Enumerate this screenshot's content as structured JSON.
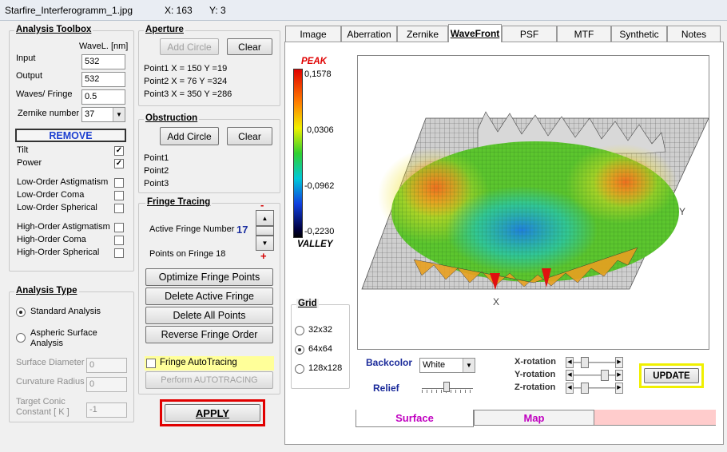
{
  "titlebar": {
    "filename": "Starfire_Interferogramm_1.jpg",
    "x": "X: 163",
    "y": "Y: 3"
  },
  "toolbox": {
    "title": "Analysis Toolbox",
    "wavel_header": "WaveL. [nm]",
    "input_label": "Input",
    "input_value": "532",
    "output_label": "Output",
    "output_value": "532",
    "waves_label": "Waves/ Fringe",
    "waves_value": "0.5",
    "zernike_label": "Zernike number",
    "zernike_value": "37",
    "remove_label": "REMOVE",
    "terms": [
      {
        "label": "Tilt",
        "checked": true
      },
      {
        "label": "Power",
        "checked": true
      },
      {
        "label": "Low-Order  Astigmatism",
        "checked": false
      },
      {
        "label": "Low-Order  Coma",
        "checked": false
      },
      {
        "label": "Low-Order  Spherical",
        "checked": false
      },
      {
        "label": "High-Order  Astigmatism",
        "checked": false
      },
      {
        "label": "High-Order  Coma",
        "checked": false
      },
      {
        "label": "High-Order  Spherical",
        "checked": false
      }
    ]
  },
  "analysis_type": {
    "title": "Analysis Type",
    "standard": "Standard Analysis",
    "aspheric_1": "Aspheric  Surface",
    "aspheric_2": "Analysis",
    "surface_diameter_label": "Surface Diameter",
    "surface_diameter_value": "0",
    "curvature_radius_label": "Curvature Radius",
    "curvature_radius_value": "0",
    "target_conic_1": "Target Conic",
    "target_conic_2": "Constant [ K ]",
    "target_conic_value": "-1"
  },
  "aperture": {
    "title": "Aperture",
    "add_label": "Add Circle",
    "clear_label": "Clear",
    "points": [
      "Point1 X =   150  Y =19",
      "Point2 X =   76   Y =324",
      "Point3 X =   350  Y =286"
    ]
  },
  "obstruction": {
    "title": "Obstruction",
    "add_label": "Add Circle",
    "clear_label": "Clear",
    "points": [
      "Point1",
      "Point2",
      "Point3"
    ]
  },
  "fringe": {
    "title": "Fringe Tracing",
    "minus": "-",
    "plus": "+",
    "active_label": "Active Fringe Number",
    "active_value": "17",
    "points_label": "Points on  Fringe 18",
    "buttons": [
      "Optimize Fringe Points",
      "Delete Active Fringe",
      "Delete  All  Points",
      "Reverse  Fringe Order"
    ],
    "autotracing_label": "Fringe AutoTracing",
    "perform_label": "Perform  AUTOTRACING"
  },
  "apply_label": "APPLY",
  "tabs": [
    "Image",
    "Aberration",
    "Zernike",
    "WaveFront",
    "PSF",
    "MTF",
    "Synthetic",
    "Notes"
  ],
  "colorbar": {
    "peak": "PEAK",
    "valley": "VALLEY",
    "ticks": [
      "0,1578",
      "0,0306",
      "-0,0962",
      "-0,2230"
    ]
  },
  "plot": {
    "x_label": "X",
    "y_label": "Y"
  },
  "grid": {
    "title": "Grid",
    "options": [
      {
        "label": "32x32",
        "on": false
      },
      {
        "label": "64x64",
        "on": true
      },
      {
        "label": "128x128",
        "on": false
      }
    ]
  },
  "controls": {
    "backcolor_label": "Backcolor",
    "backcolor_value": "White",
    "relief_label": "Relief",
    "xrot_label": "X-rotation",
    "yrot_label": "Y-rotation",
    "zrot_label": "Z-rotation",
    "update_label": "UPDATE"
  },
  "bottom_tabs": [
    "Surface",
    "Map"
  ]
}
